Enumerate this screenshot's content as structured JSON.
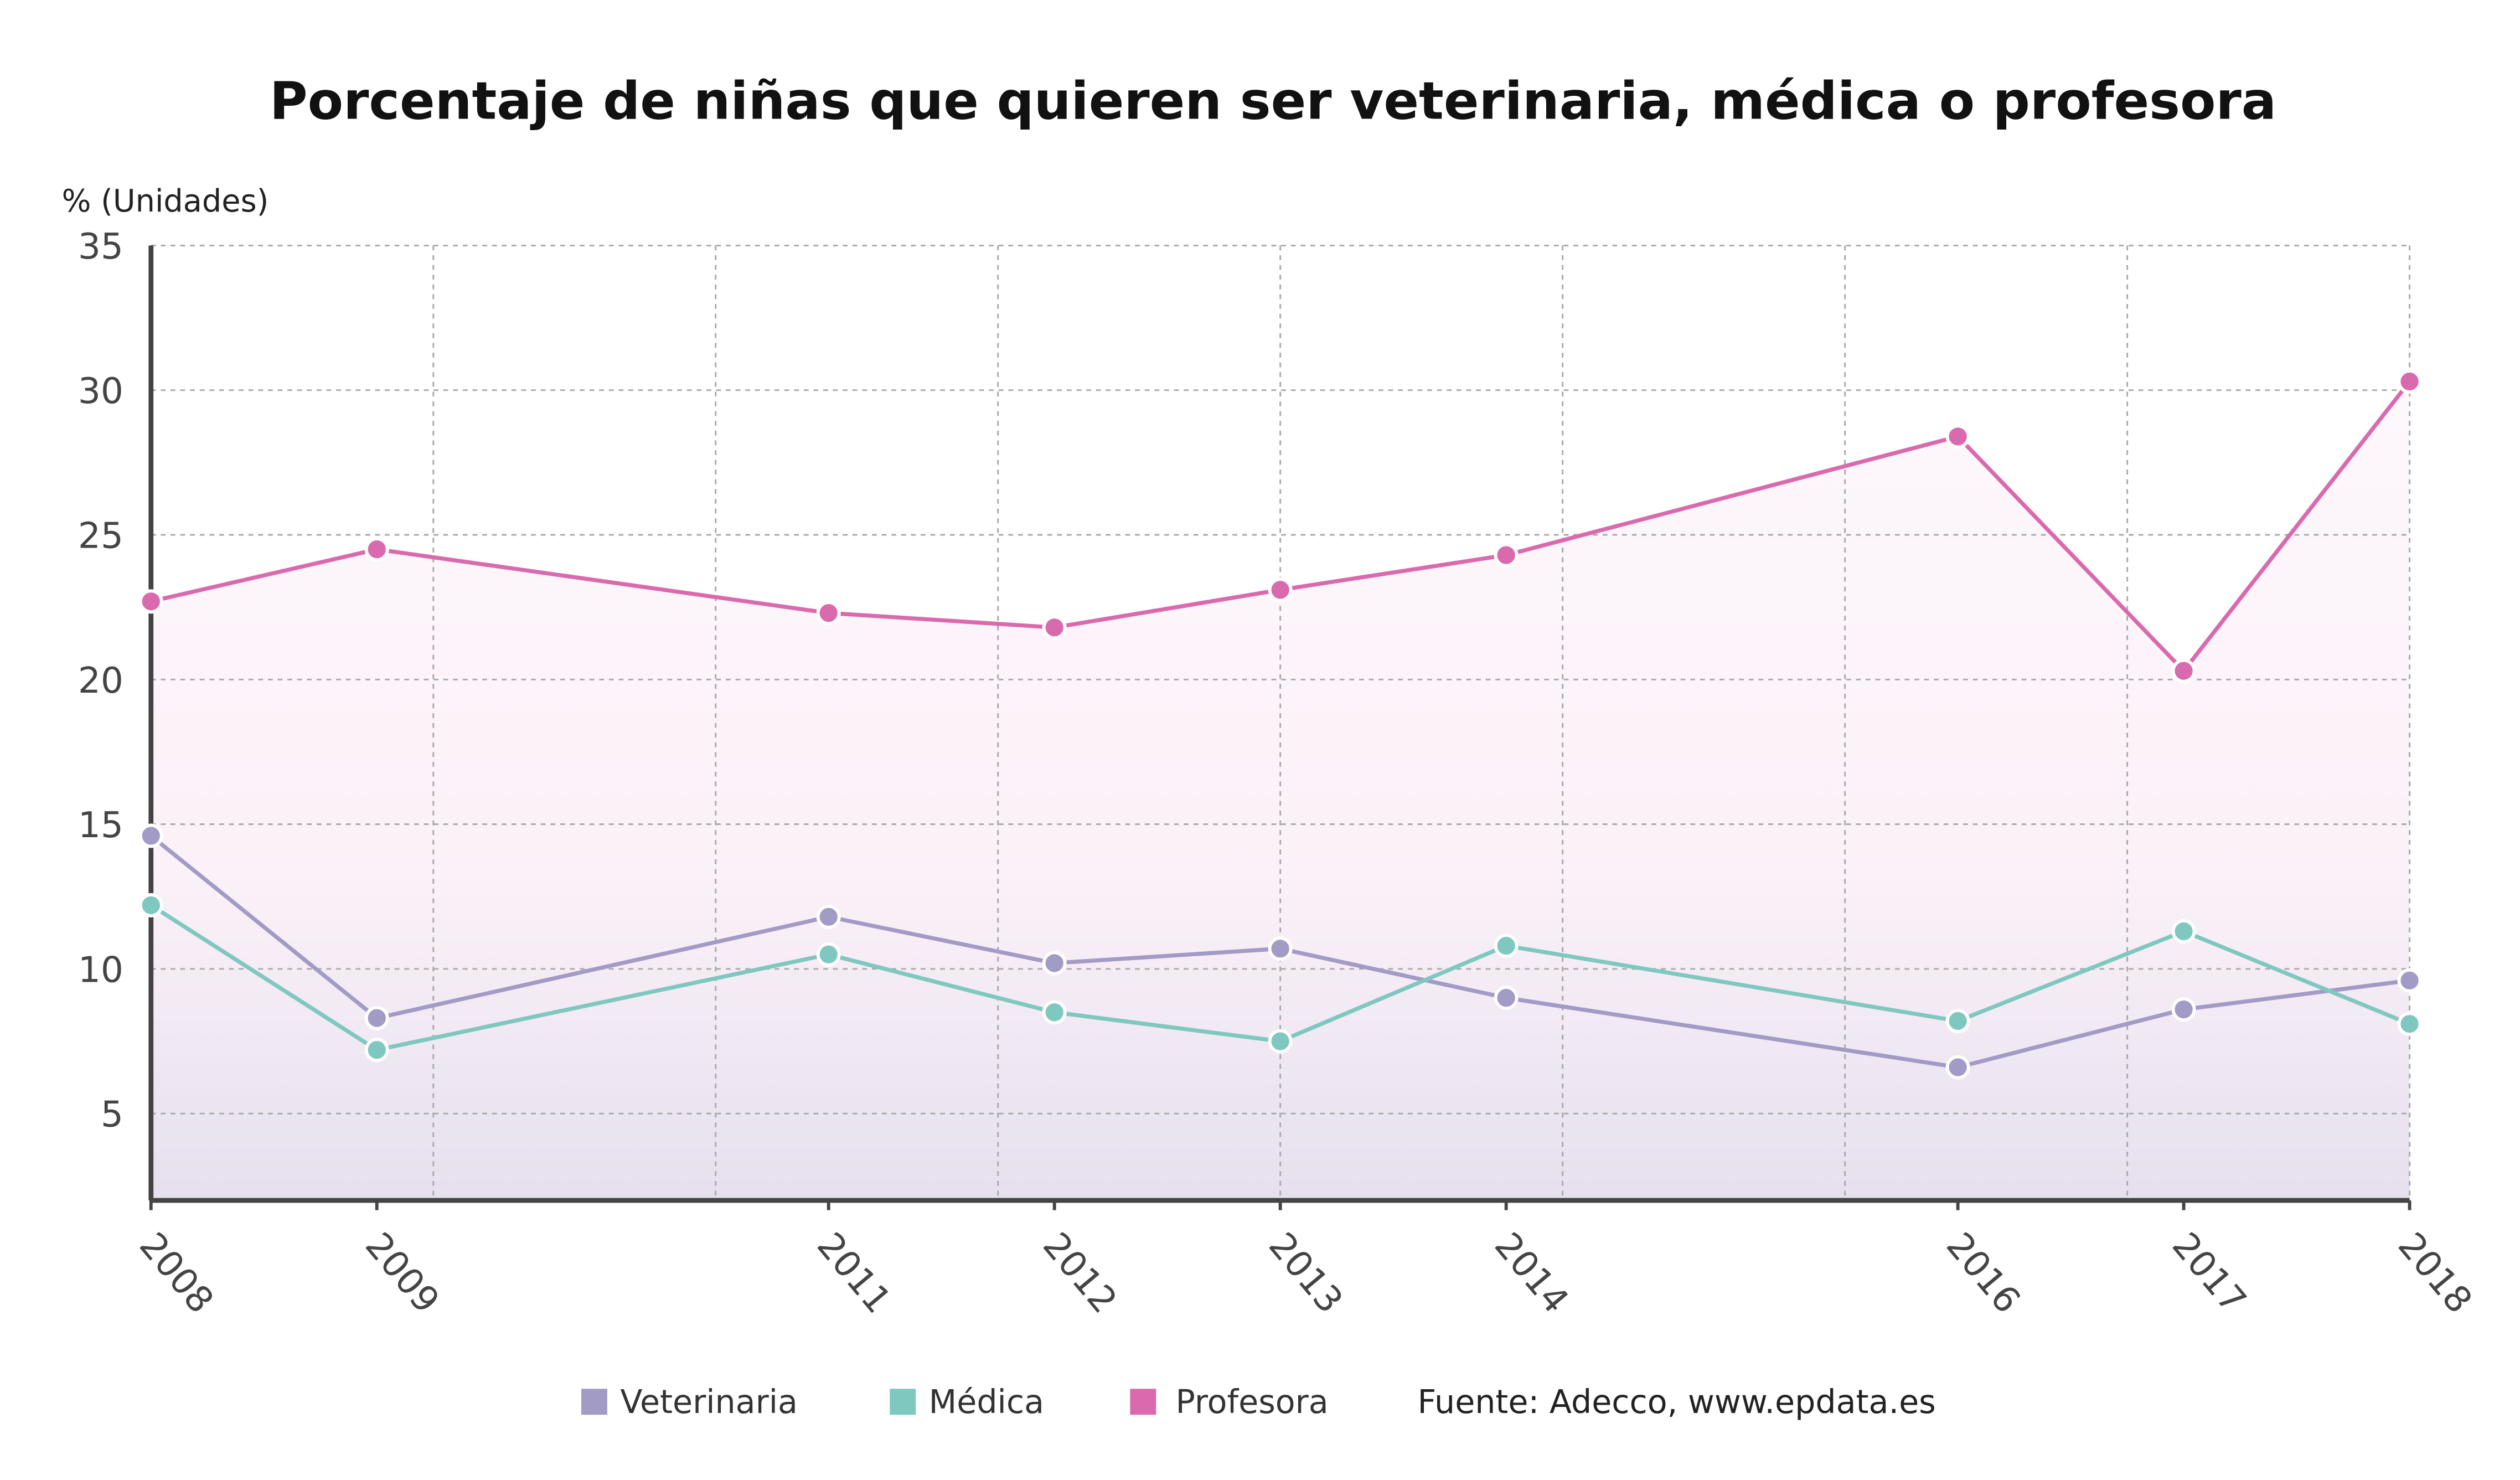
{
  "chart_data": {
    "type": "line",
    "title": "Porcentaje de niñas que quieren ser veterinaria, médica o profesora",
    "ylabel": "% (Unidades)",
    "xlabel": "",
    "x": [
      2008,
      2009,
      2011,
      2012,
      2013,
      2014,
      2016,
      2017,
      2018
    ],
    "x_tick_labels": [
      "2008",
      "2009",
      "2011",
      "2012",
      "2013",
      "2014",
      "2016",
      "2017",
      "2018"
    ],
    "y_ticks": [
      5,
      10,
      15,
      20,
      25,
      30,
      35
    ],
    "ylim": [
      2,
      35
    ],
    "xlim": [
      2008,
      2018
    ],
    "grid": true,
    "legend_placement": "bottom",
    "series": [
      {
        "name": "Veterinaria",
        "color": "#a29bc6",
        "values": [
          14.6,
          8.3,
          11.8,
          10.2,
          10.7,
          9.0,
          6.6,
          8.6,
          9.6
        ]
      },
      {
        "name": "Médica",
        "color": "#7fc8c0",
        "values": [
          12.2,
          7.2,
          10.5,
          8.5,
          7.5,
          10.8,
          8.2,
          11.3,
          8.1
        ]
      },
      {
        "name": "Profesora",
        "color": "#d96aae",
        "values": [
          22.7,
          24.5,
          22.3,
          21.8,
          23.1,
          24.3,
          28.4,
          20.3,
          30.3
        ]
      }
    ],
    "source": "Fuente: Adecco, www.epdata.es"
  }
}
